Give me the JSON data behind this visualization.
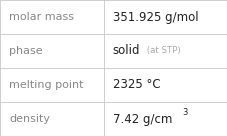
{
  "rows": [
    {
      "label": "molar mass",
      "value": "351.925 g/mol",
      "value_suffix": null,
      "superscript": null
    },
    {
      "label": "phase",
      "value": "solid",
      "value_suffix": " (at STP)",
      "superscript": null
    },
    {
      "label": "melting point",
      "value": "2325 °C",
      "value_suffix": null,
      "superscript": null
    },
    {
      "label": "density",
      "value": "7.42 g/cm",
      "value_suffix": null,
      "superscript": "3"
    }
  ],
  "background_color": "#ffffff",
  "border_color": "#c8c8c8",
  "label_color": "#888888",
  "value_color": "#222222",
  "suffix_color": "#aaaaaa",
  "label_fontsize": 8.0,
  "value_fontsize": 8.5,
  "suffix_fontsize": 6.2,
  "super_fontsize": 6.0,
  "col_split": 0.455,
  "fig_width": 2.28,
  "fig_height": 1.36,
  "dpi": 100
}
